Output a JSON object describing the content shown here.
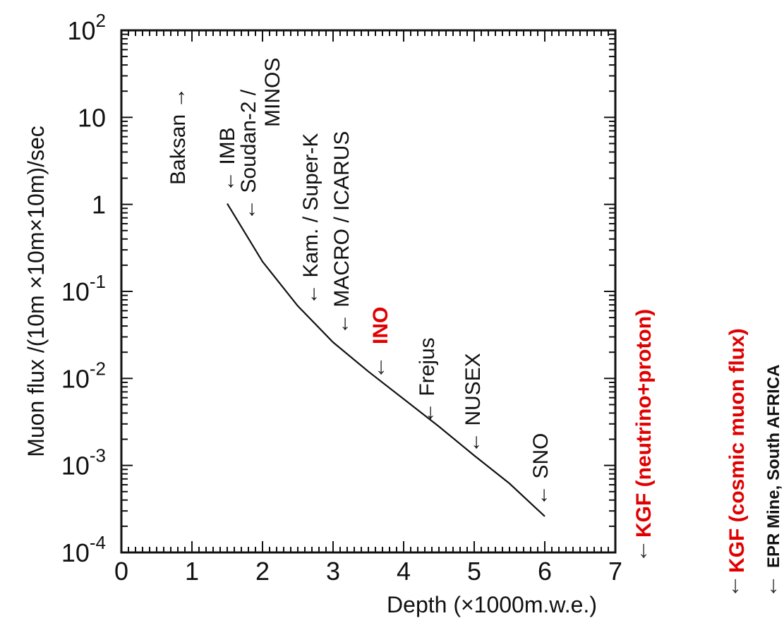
{
  "chart_data": {
    "type": "line",
    "xlabel": "Depth  (×1000m.w.e.)",
    "ylabel": "Muon flux /(10m ×10m×10m)/sec",
    "xlim": [
      0,
      7
    ],
    "ylim": [
      0.0001,
      100
    ],
    "y_scale": "log",
    "x_ticks": [
      "0",
      "1",
      "2",
      "3",
      "4",
      "5",
      "6",
      "7"
    ],
    "y_ticks": [
      {
        "base": "10",
        "exp": "2"
      },
      {
        "base": "10",
        "exp": ""
      },
      {
        "base": "1",
        "exp": ""
      },
      {
        "base": "10",
        "exp": "-1"
      },
      {
        "base": "10",
        "exp": "-2"
      },
      {
        "base": "10",
        "exp": "-3"
      },
      {
        "base": "10",
        "exp": "-4"
      }
    ],
    "series": [
      {
        "x": [
          1.5,
          2.0,
          2.5,
          3.0,
          3.5,
          4.0,
          4.5,
          5.0,
          5.5,
          6.0
        ],
        "y": [
          1.02,
          0.22,
          0.068,
          0.026,
          0.012,
          0.0058,
          0.0028,
          0.0013,
          0.00062,
          0.00026
        ]
      }
    ],
    "annotations": [
      {
        "text": "Baksan →",
        "depth": 1.0,
        "color": "#111111"
      },
      {
        "text": "← IMB",
        "depth": 1.5,
        "color": "#111111"
      },
      {
        "text": "← Soudan-2 /",
        "depth": 1.8,
        "color": "#111111"
      },
      {
        "text": "MINOS",
        "depth": 2.2,
        "color": "#111111"
      },
      {
        "text": "← Kam. / Super-K",
        "depth": 2.7,
        "color": "#111111"
      },
      {
        "text": "← MACRO / ICARUS",
        "depth": 3.1,
        "color": "#111111"
      },
      {
        "text": "INO",
        "depth": 3.7,
        "color": "#e00000"
      },
      {
        "text": "↓",
        "depth": 3.7,
        "color": "#333333"
      },
      {
        "text": "← Frejus",
        "depth": 4.3,
        "color": "#111111"
      },
      {
        "text": "← NUSEX",
        "depth": 5.0,
        "color": "#111111"
      },
      {
        "text": "← SNO",
        "depth": 6.0,
        "color": "#111111"
      }
    ],
    "outside_labels": [
      {
        "arrow": "↓",
        "text": "KGF (neutrino+proton)",
        "color": "#e00000"
      },
      {
        "arrow": "↓",
        "text": "KGF (cosmic muon flux)",
        "color": "#e00000"
      },
      {
        "arrow": "↓",
        "text": "EPR Mine, South AFRICA",
        "color": "#111111"
      }
    ]
  }
}
